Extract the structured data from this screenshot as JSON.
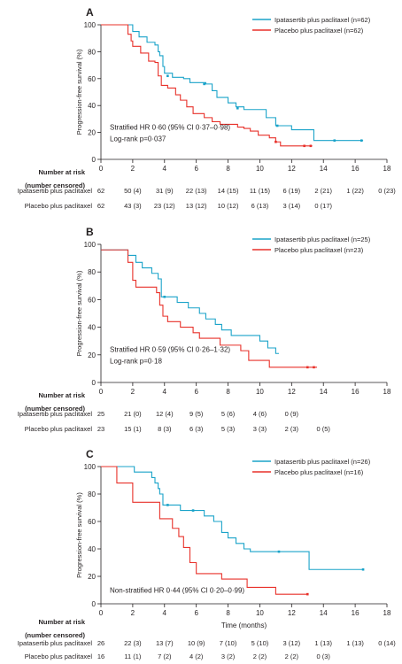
{
  "colors": {
    "ipat": "#1aa3c9",
    "placebo": "#e8312a",
    "axis": "#231f20"
  },
  "common": {
    "ylabel": "Progression-free survival (%)",
    "xlabel": "Time (months)",
    "risk_title_1": "Number at risk",
    "risk_title_2": "(number censored)"
  },
  "chart_data": [
    {
      "panel": "A",
      "type": "line",
      "step": true,
      "xlim": [
        0,
        18
      ],
      "ylim": [
        0,
        100
      ],
      "xticks": [
        0,
        2,
        4,
        6,
        8,
        10,
        12,
        14,
        16,
        18
      ],
      "yticks": [
        0,
        20,
        40,
        60,
        80,
        100
      ],
      "show_xlabel": false,
      "annotations": [
        "Stratified HR 0·60 (95% CI 0·37–0·98)",
        "Log-rank p=0·037"
      ],
      "series": [
        {
          "name": "Ipatasertib plus paclitaxel (n=62)",
          "color_key": "ipat",
          "points": [
            [
              0,
              100
            ],
            [
              1.8,
              100
            ],
            [
              2.0,
              95
            ],
            [
              2.4,
              91
            ],
            [
              2.9,
              87
            ],
            [
              3.4,
              85
            ],
            [
              3.6,
              80
            ],
            [
              3.7,
              77
            ],
            [
              3.9,
              69
            ],
            [
              4.0,
              64
            ],
            [
              4.5,
              61
            ],
            [
              5.0,
              61
            ],
            [
              5.2,
              60
            ],
            [
              5.6,
              57
            ],
            [
              6.0,
              57
            ],
            [
              6.6,
              56
            ],
            [
              7.0,
              51
            ],
            [
              7.3,
              46
            ],
            [
              7.5,
              46
            ],
            [
              8.0,
              42
            ],
            [
              8.5,
              39
            ],
            [
              9.0,
              37
            ],
            [
              10.4,
              31
            ],
            [
              11.0,
              25
            ],
            [
              11.5,
              25
            ],
            [
              12.0,
              22
            ],
            [
              13.3,
              22
            ],
            [
              13.4,
              14
            ],
            [
              16.5,
              14
            ]
          ],
          "censors": [
            [
              4.2,
              62
            ],
            [
              6.5,
              56
            ],
            [
              8.6,
              38
            ],
            [
              11.1,
              25
            ],
            [
              14.7,
              14
            ],
            [
              16.4,
              14
            ]
          ]
        },
        {
          "name": "Placebo plus paclitaxel (n=62)",
          "color_key": "placebo",
          "points": [
            [
              0,
              100
            ],
            [
              1.5,
              100
            ],
            [
              1.7,
              93
            ],
            [
              1.9,
              88
            ],
            [
              2.0,
              84
            ],
            [
              2.5,
              79
            ],
            [
              3.0,
              73
            ],
            [
              3.4,
              72
            ],
            [
              3.6,
              62
            ],
            [
              3.8,
              55
            ],
            [
              4.2,
              53
            ],
            [
              4.7,
              48
            ],
            [
              5.0,
              44
            ],
            [
              5.4,
              39
            ],
            [
              5.8,
              34
            ],
            [
              6.5,
              31
            ],
            [
              7.0,
              28
            ],
            [
              7.5,
              26
            ],
            [
              8.0,
              26
            ],
            [
              8.6,
              24
            ],
            [
              9.0,
              23
            ],
            [
              9.4,
              21
            ],
            [
              9.9,
              18
            ],
            [
              10.6,
              16
            ],
            [
              11.0,
              13
            ],
            [
              11.3,
              10
            ],
            [
              13.3,
              10
            ]
          ],
          "censors": [
            [
              11.0,
              13
            ],
            [
              12.8,
              10
            ],
            [
              13.2,
              10
            ]
          ]
        }
      ],
      "risk": {
        "header": "Number at risk",
        "rows": [
          {
            "label": "Ipatasertib plus paclitaxel",
            "values": [
              "62",
              "50 (4)",
              "31 (9)",
              "22 (13)",
              "14 (15)",
              "11 (15)",
              "6 (19)",
              "2 (21)",
              "1 (22)",
              "0 (23)"
            ]
          },
          {
            "label": "Placebo plus paclitaxel",
            "values": [
              "62",
              "43 (3)",
              "23 (12)",
              "13 (12)",
              "10 (12)",
              "6 (13)",
              "3 (14)",
              "0 (17)"
            ]
          }
        ]
      }
    },
    {
      "panel": "B",
      "type": "line",
      "step": true,
      "xlim": [
        0,
        18
      ],
      "ylim": [
        0,
        100
      ],
      "xticks": [
        0,
        2,
        4,
        6,
        8,
        10,
        12,
        14,
        16,
        18
      ],
      "yticks": [
        0,
        20,
        40,
        60,
        80,
        100
      ],
      "show_xlabel": false,
      "annotations": [
        "Stratified HR 0·59 (95% CI 0·26–1·32)",
        "Log-rank p=0·18"
      ],
      "series": [
        {
          "name": "Ipatasertib plus paclitaxel (n=25)",
          "color_key": "ipat",
          "points": [
            [
              0,
              96
            ],
            [
              1.5,
              96
            ],
            [
              1.7,
              92
            ],
            [
              2.2,
              87
            ],
            [
              2.6,
              83
            ],
            [
              3.2,
              79
            ],
            [
              3.6,
              75
            ],
            [
              3.8,
              62
            ],
            [
              4.5,
              62
            ],
            [
              4.8,
              58
            ],
            [
              5.5,
              54
            ],
            [
              6.2,
              50
            ],
            [
              6.6,
              46
            ],
            [
              7.2,
              42
            ],
            [
              7.6,
              38
            ],
            [
              8.2,
              34
            ],
            [
              9.4,
              34
            ],
            [
              10.0,
              30
            ],
            [
              10.5,
              25
            ],
            [
              11.0,
              21
            ],
            [
              11.2,
              21
            ]
          ],
          "censors": [
            [
              4.0,
              62
            ]
          ]
        },
        {
          "name": "Placebo plus paclitaxel (n=23)",
          "color_key": "placebo",
          "points": [
            [
              0,
              96
            ],
            [
              1.5,
              96
            ],
            [
              1.7,
              87
            ],
            [
              2.0,
              74
            ],
            [
              2.2,
              69
            ],
            [
              3.5,
              65
            ],
            [
              3.7,
              56
            ],
            [
              3.9,
              48
            ],
            [
              4.2,
              44
            ],
            [
              5.0,
              40
            ],
            [
              5.8,
              36
            ],
            [
              6.2,
              32
            ],
            [
              7.5,
              27
            ],
            [
              8.8,
              23
            ],
            [
              9.3,
              16
            ],
            [
              10.6,
              11
            ],
            [
              13.6,
              11
            ]
          ],
          "censors": [
            [
              13.0,
              11
            ],
            [
              13.4,
              11
            ]
          ]
        }
      ],
      "risk": {
        "header": "Number at risk",
        "rows": [
          {
            "label": "Ipatasertib plus paclitaxel",
            "values": [
              "25",
              "21 (0)",
              "12 (4)",
              "9 (5)",
              "5 (6)",
              "4 (6)",
              "0 (9)"
            ]
          },
          {
            "label": "Placebo plus paclitaxel",
            "values": [
              "23",
              "15 (1)",
              "8 (3)",
              "6 (3)",
              "5 (3)",
              "3 (3)",
              "2 (3)",
              "0 (5)"
            ]
          }
        ]
      }
    },
    {
      "panel": "C",
      "type": "line",
      "step": true,
      "xlim": [
        0,
        18
      ],
      "ylim": [
        0,
        100
      ],
      "xticks": [
        0,
        2,
        4,
        6,
        8,
        10,
        12,
        14,
        16,
        18
      ],
      "yticks": [
        0,
        20,
        40,
        60,
        80,
        100
      ],
      "show_xlabel": true,
      "annotations": [
        "Non-stratified HR 0·44 (95% CI 0·20–0·99)"
      ],
      "series": [
        {
          "name": "Ipatasertib plus paclitaxel (n=26)",
          "color_key": "ipat",
          "points": [
            [
              0,
              100
            ],
            [
              2.0,
              100
            ],
            [
              2.1,
              96
            ],
            [
              3.2,
              92
            ],
            [
              3.4,
              88
            ],
            [
              3.6,
              84
            ],
            [
              3.7,
              80
            ],
            [
              3.9,
              72
            ],
            [
              4.7,
              72
            ],
            [
              5.0,
              68
            ],
            [
              6.5,
              64
            ],
            [
              7.1,
              60
            ],
            [
              7.6,
              52
            ],
            [
              8.0,
              48
            ],
            [
              8.5,
              44
            ],
            [
              9.0,
              40
            ],
            [
              9.4,
              38
            ],
            [
              13.0,
              38
            ],
            [
              13.1,
              25
            ],
            [
              16.5,
              25
            ]
          ],
          "censors": [
            [
              4.2,
              72
            ],
            [
              5.8,
              68
            ],
            [
              11.2,
              38
            ],
            [
              16.5,
              25
            ]
          ]
        },
        {
          "name": "Placebo plus paclitaxel (n=16)",
          "color_key": "placebo",
          "points": [
            [
              0,
              100
            ],
            [
              0.9,
              100
            ],
            [
              1.0,
              88
            ],
            [
              2.0,
              74
            ],
            [
              3.5,
              74
            ],
            [
              3.7,
              62
            ],
            [
              4.5,
              55
            ],
            [
              4.9,
              49
            ],
            [
              5.2,
              41
            ],
            [
              5.6,
              30
            ],
            [
              6.0,
              22
            ],
            [
              7.6,
              18
            ],
            [
              9.0,
              18
            ],
            [
              9.2,
              12
            ],
            [
              10.5,
              12
            ],
            [
              11.0,
              7
            ],
            [
              13.0,
              7
            ]
          ],
          "censors": [
            [
              13.0,
              7
            ]
          ]
        }
      ],
      "risk": {
        "header": "Number at risk",
        "rows": [
          {
            "label": "Ipatasertib plus paclitaxel",
            "values": [
              "26",
              "22 (3)",
              "13 (7)",
              "10 (9)",
              "7 (10)",
              "5 (10)",
              "3 (12)",
              "1 (13)",
              "1 (13)",
              "0 (14)"
            ]
          },
          {
            "label": "Placebo plus paclitaxel",
            "values": [
              "16",
              "11 (1)",
              "7 (2)",
              "4 (2)",
              "3 (2)",
              "2 (2)",
              "2 (2)",
              "0 (3)"
            ]
          }
        ]
      }
    }
  ]
}
